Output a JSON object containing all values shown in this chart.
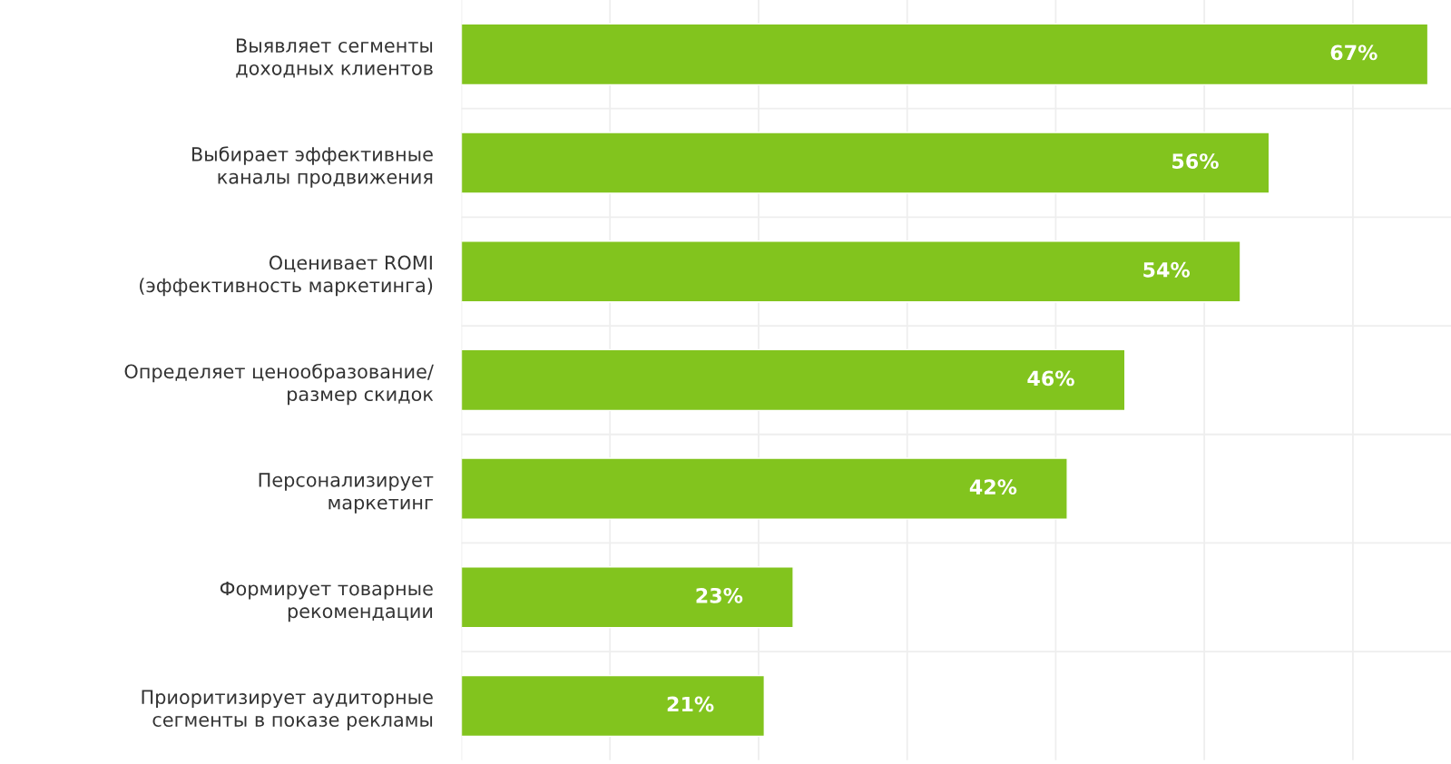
{
  "chart_data": {
    "type": "bar",
    "orientation": "horizontal",
    "categories": [
      "Выявляет сегменты\nдоходных клиентов",
      "Выбирает эффективные\nканалы продвижения",
      "Оценивает ROMI\n(эффективность маркетинга)",
      "Определяет ценообразование/\nразмер скидок",
      "Персонализирует\nмаркетинг",
      "Формирует товарные\nрекомендации",
      "Приоритизирует аудиторные\nсегменты в показе рекламы"
    ],
    "values": [
      67,
      56,
      54,
      46,
      42,
      23,
      21
    ],
    "value_labels": [
      "67%",
      "56%",
      "54%",
      "46%",
      "42%",
      "23%",
      "21%"
    ],
    "color": "#82c41e",
    "xlim": [
      0,
      68.6
    ],
    "xticks": [
      {
        "value": 0,
        "label": null
      },
      {
        "value": 10.3,
        "label": null
      },
      {
        "value": 20.6,
        "label": null
      },
      {
        "value": 30.9,
        "label": null
      },
      {
        "value": 41.2,
        "label": null
      },
      {
        "value": 51.5,
        "label": null
      },
      {
        "value": 61.8,
        "label": null
      }
    ],
    "tick_labels": "y",
    "grid": true
  }
}
